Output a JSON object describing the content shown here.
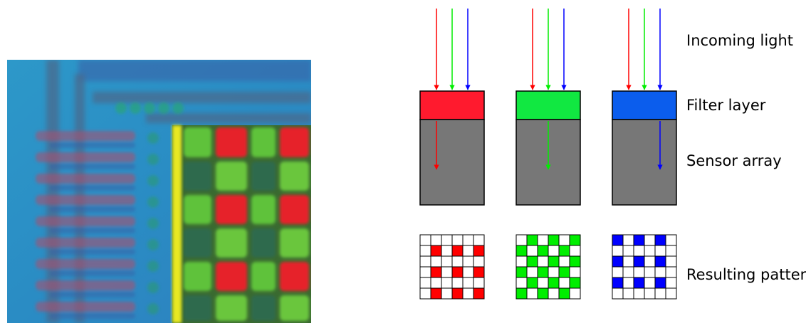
{
  "labels": {
    "incoming_light": "Incoming light",
    "filter_layer": "Filter layer",
    "sensor_array": "Sensor array",
    "resulting_pattern": "Resulting pattern"
  },
  "colors": {
    "red": "#ff0000",
    "green": "#00ee00",
    "blue": "#0000ff",
    "filter_red": "#ff1a2e",
    "filter_green": "#11e841",
    "filter_blue": "#0b5ded",
    "sensor_gray": "#777777",
    "photo_background": "#2c92c8",
    "photo_yellow_strip": "#e8e820"
  },
  "filters": [
    {
      "name": "red",
      "passed_ray": "red",
      "pattern_cells": [
        [
          1,
          1
        ],
        [
          1,
          3
        ],
        [
          1,
          5
        ],
        [
          3,
          1
        ],
        [
          3,
          3
        ],
        [
          3,
          5
        ],
        [
          5,
          1
        ],
        [
          5,
          3
        ],
        [
          5,
          5
        ]
      ]
    },
    {
      "name": "green",
      "passed_ray": "green",
      "pattern_cells": [
        [
          0,
          1
        ],
        [
          0,
          3
        ],
        [
          0,
          5
        ],
        [
          1,
          0
        ],
        [
          1,
          2
        ],
        [
          1,
          4
        ],
        [
          2,
          1
        ],
        [
          2,
          3
        ],
        [
          2,
          5
        ],
        [
          3,
          0
        ],
        [
          3,
          2
        ],
        [
          3,
          4
        ],
        [
          4,
          1
        ],
        [
          4,
          3
        ],
        [
          4,
          5
        ],
        [
          5,
          0
        ],
        [
          5,
          2
        ],
        [
          5,
          4
        ]
      ]
    },
    {
      "name": "blue",
      "passed_ray": "blue",
      "pattern_cells": [
        [
          0,
          0
        ],
        [
          0,
          2
        ],
        [
          0,
          4
        ],
        [
          2,
          0
        ],
        [
          2,
          2
        ],
        [
          2,
          4
        ],
        [
          4,
          0
        ],
        [
          4,
          2
        ],
        [
          4,
          4
        ]
      ]
    }
  ],
  "pattern_grid_size": 6
}
